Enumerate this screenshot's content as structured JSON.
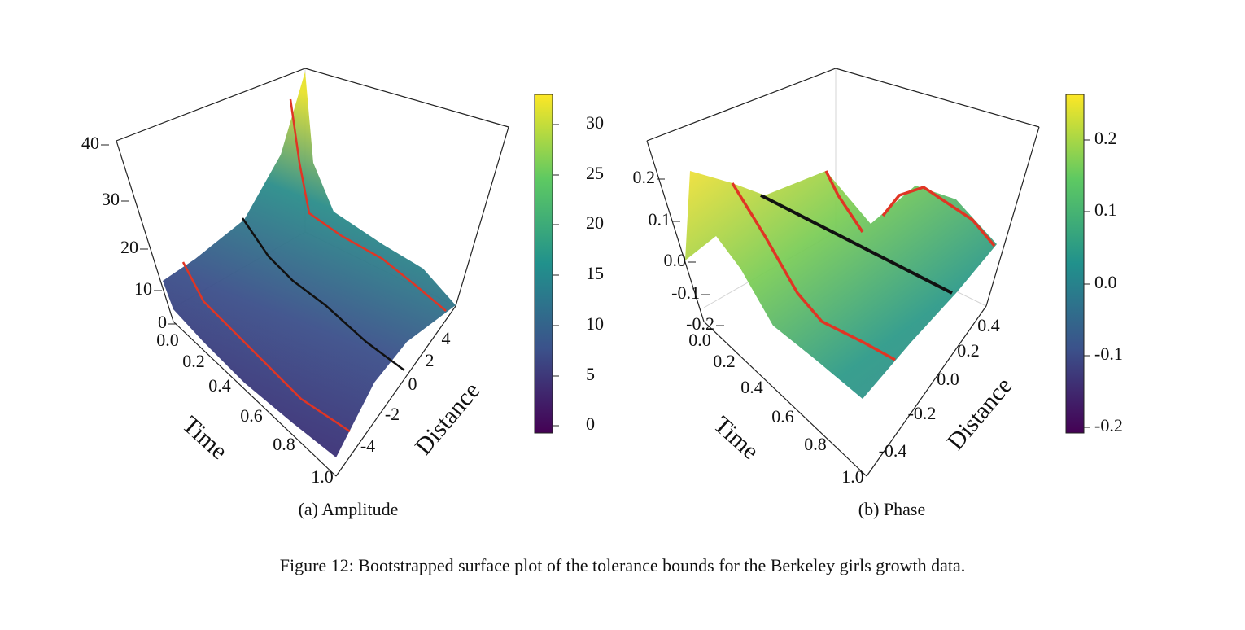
{
  "panels": [
    {
      "caption": "(a) Amplitude",
      "x_label": "Time",
      "y_label": "Distance",
      "x_ticks": [
        "0.0",
        "0.2",
        "0.4",
        "0.6",
        "0.8",
        "1.0"
      ],
      "y_ticks": [
        "4",
        "2",
        "0",
        "-2",
        "-4"
      ],
      "z_ticks": [
        "40",
        "30",
        "20",
        "10",
        "0"
      ],
      "colorbar_ticks": [
        "30",
        "25",
        "20",
        "15",
        "10",
        "5",
        "0"
      ]
    },
    {
      "caption": "(b) Phase",
      "x_label": "Time",
      "y_label": "Distance",
      "x_ticks": [
        "0.0",
        "0.2",
        "0.4",
        "0.6",
        "0.8",
        "1.0"
      ],
      "y_ticks": [
        "0.4",
        "0.2",
        "0.0",
        "-0.2",
        "-0.4"
      ],
      "z_ticks": [
        "0.2",
        "0.1",
        "0.0",
        "-0.1",
        "-0.2"
      ],
      "colorbar_ticks": [
        "0.2",
        "0.1",
        "0.0",
        "-0.1",
        "-0.2"
      ]
    }
  ],
  "figure_caption": "Figure 12: Bootstrapped surface plot of the tolerance bounds for the Berkeley girls growth data."
}
